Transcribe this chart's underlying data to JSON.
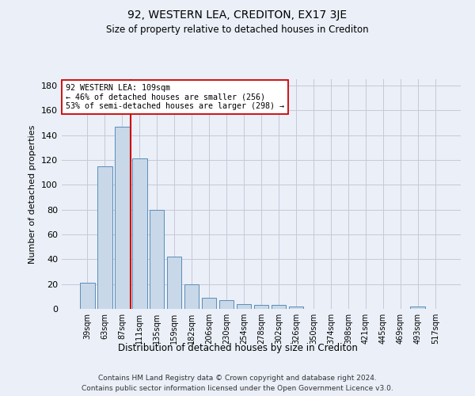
{
  "title": "92, WESTERN LEA, CREDITON, EX17 3JE",
  "subtitle": "Size of property relative to detached houses in Crediton",
  "xlabel": "Distribution of detached houses by size in Crediton",
  "ylabel": "Number of detached properties",
  "bar_labels": [
    "39sqm",
    "63sqm",
    "87sqm",
    "111sqm",
    "135sqm",
    "159sqm",
    "182sqm",
    "206sqm",
    "230sqm",
    "254sqm",
    "278sqm",
    "302sqm",
    "326sqm",
    "350sqm",
    "374sqm",
    "398sqm",
    "421sqm",
    "445sqm",
    "469sqm",
    "493sqm",
    "517sqm"
  ],
  "bar_values": [
    21,
    115,
    147,
    121,
    80,
    42,
    20,
    9,
    7,
    4,
    3,
    3,
    2,
    0,
    0,
    0,
    0,
    0,
    0,
    2,
    0
  ],
  "bar_color": "#c8d8e8",
  "bar_edge_color": "#5b8db8",
  "vline_color": "#cc0000",
  "vline_pos": 2.5,
  "annotation_line1": "92 WESTERN LEA: 109sqm",
  "annotation_line2": "← 46% of detached houses are smaller (256)",
  "annotation_line3": "53% of semi-detached houses are larger (298) →",
  "annotation_box_color": "white",
  "annotation_box_edge_color": "#cc0000",
  "ylim": [
    0,
    185
  ],
  "yticks": [
    0,
    20,
    40,
    60,
    80,
    100,
    120,
    140,
    160,
    180
  ],
  "footer_line1": "Contains HM Land Registry data © Crown copyright and database right 2024.",
  "footer_line2": "Contains public sector information licensed under the Open Government Licence v3.0.",
  "background_color": "#eaeff8",
  "grid_color": "#c8c8d8"
}
